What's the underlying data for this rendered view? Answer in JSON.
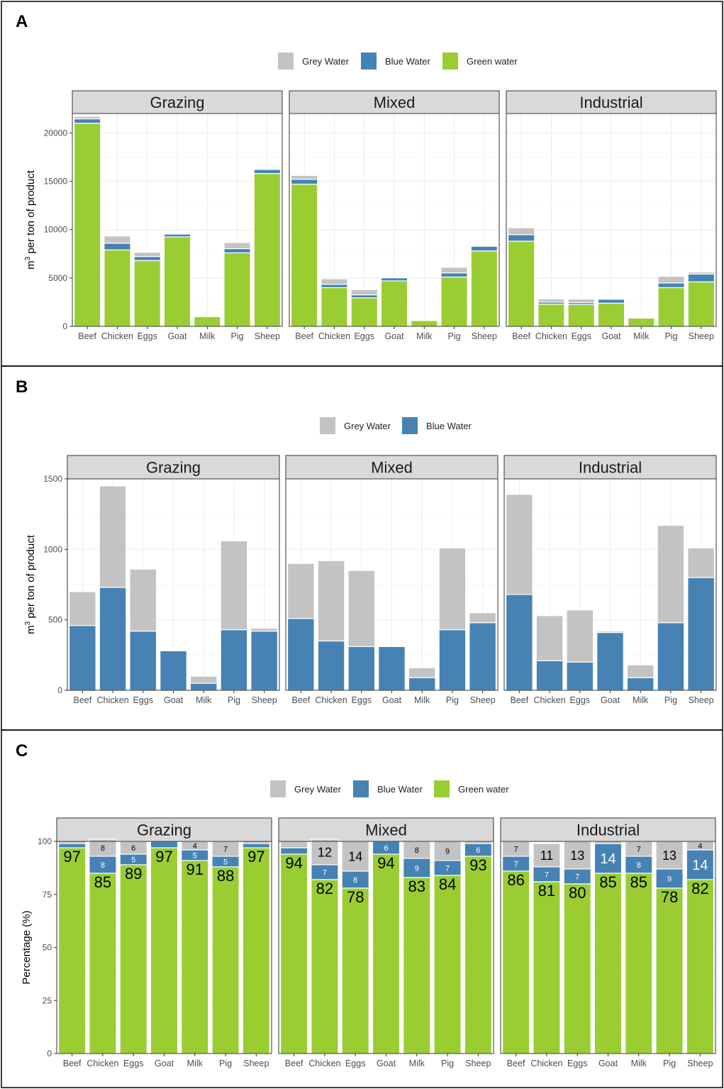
{
  "colors": {
    "grey": "#c3c3c3",
    "blue": "#4682b4",
    "green": "#9acd32",
    "strip": "#d9d9d9",
    "grid": "#ebebeb"
  },
  "categories": [
    "Beef",
    "Chicken",
    "Eggs",
    "Goat",
    "Milk",
    "Pig",
    "Sheep"
  ],
  "facets": [
    "Grazing",
    "Mixed",
    "Industrial"
  ],
  "legend": {
    "grey": "Grey Water",
    "blue": "Blue Water",
    "green": "Green water"
  },
  "panels": [
    {
      "label": "A"
    },
    {
      "label": "B"
    },
    {
      "label": "C"
    }
  ],
  "chart_data": [
    {
      "panel": "A",
      "type": "bar",
      "stacked": true,
      "ylabel": "m3 per ton of product",
      "ylim": [
        0,
        22000
      ],
      "yticks": [
        0,
        5000,
        10000,
        15000,
        20000
      ],
      "legend": [
        "Grey Water",
        "Blue Water",
        "Green water"
      ],
      "legend_position": "top",
      "facets": [
        {
          "name": "Grazing",
          "series": [
            {
              "name": "Green water",
              "values": [
                21000,
                7900,
                6800,
                9250,
                1000,
                7600,
                15800
              ]
            },
            {
              "name": "Blue Water",
              "values": [
                450,
                700,
                420,
                280,
                50,
                430,
                420
              ]
            },
            {
              "name": "Grey Water",
              "values": [
                250,
                740,
                440,
                0,
                50,
                630,
                20
              ]
            }
          ]
        },
        {
          "name": "Mixed",
          "series": [
            {
              "name": "Green water",
              "values": [
                14700,
                4000,
                2950,
                4700,
                600,
                5100,
                7800
              ]
            },
            {
              "name": "Blue Water",
              "values": [
                510,
                350,
                310,
                310,
                90,
                430,
                480
              ]
            },
            {
              "name": "Grey Water",
              "values": [
                390,
                560,
                540,
                0,
                70,
                580,
                60
              ]
            }
          ]
        },
        {
          "name": "Industrial",
          "series": [
            {
              "name": "Green water",
              "values": [
                8800,
                2300,
                2250,
                2400,
                850,
                4000,
                4600
              ]
            },
            {
              "name": "Blue Water",
              "values": [
                680,
                210,
                200,
                410,
                90,
                480,
                800
              ]
            },
            {
              "name": "Grey Water",
              "values": [
                710,
                320,
                370,
                10,
                90,
                690,
                210
              ]
            }
          ]
        }
      ]
    },
    {
      "panel": "B",
      "type": "bar",
      "stacked": true,
      "ylabel": "m3 per ton of product",
      "ylim": [
        0,
        1500
      ],
      "yticks": [
        0,
        500,
        1000,
        1500
      ],
      "legend": [
        "Grey Water",
        "Blue Water"
      ],
      "legend_position": "top",
      "facets": [
        {
          "name": "Grazing",
          "series": [
            {
              "name": "Blue Water",
              "values": [
                460,
                730,
                420,
                280,
                50,
                430,
                420
              ]
            },
            {
              "name": "Grey Water",
              "values": [
                240,
                720,
                440,
                0,
                50,
                630,
                20
              ]
            }
          ]
        },
        {
          "name": "Mixed",
          "series": [
            {
              "name": "Blue Water",
              "values": [
                510,
                350,
                310,
                310,
                90,
                430,
                480
              ]
            },
            {
              "name": "Grey Water",
              "values": [
                390,
                570,
                540,
                0,
                70,
                580,
                70
              ]
            }
          ]
        },
        {
          "name": "Industrial",
          "series": [
            {
              "name": "Blue Water",
              "values": [
                680,
                210,
                200,
                410,
                90,
                480,
                800
              ]
            },
            {
              "name": "Grey Water",
              "values": [
                710,
                320,
                370,
                10,
                90,
                690,
                210
              ]
            }
          ]
        }
      ]
    },
    {
      "panel": "C",
      "type": "bar",
      "stacked": true,
      "ylabel": "Percentage (%)",
      "ylim": [
        0,
        100
      ],
      "yticks": [
        0,
        25,
        50,
        75,
        100
      ],
      "legend": [
        "Grey Water",
        "Blue Water",
        "Green water"
      ],
      "legend_position": "top",
      "facets": [
        {
          "name": "Grazing",
          "series": [
            {
              "name": "Green water",
              "values": [
                97,
                85,
                89,
                97,
                91,
                88,
                97
              ]
            },
            {
              "name": "Blue Water",
              "values": [
                2,
                8,
                5,
                3,
                5,
                5,
                2
              ]
            },
            {
              "name": "Grey Water",
              "values": [
                1,
                8,
                6,
                0,
                4,
                7,
                1
              ]
            }
          ]
        },
        {
          "name": "Mixed",
          "series": [
            {
              "name": "Green water",
              "values": [
                94,
                82,
                78,
                94,
                83,
                84,
                93
              ]
            },
            {
              "name": "Blue Water",
              "values": [
                3,
                7,
                8,
                6,
                9,
                7,
                6
              ]
            },
            {
              "name": "Grey Water",
              "values": [
                3,
                12,
                14,
                0,
                8,
                9,
                1
              ]
            }
          ]
        },
        {
          "name": "Industrial",
          "series": [
            {
              "name": "Green water",
              "values": [
                86,
                81,
                80,
                85,
                85,
                78,
                82
              ]
            },
            {
              "name": "Blue Water",
              "values": [
                7,
                7,
                7,
                14,
                8,
                9,
                14
              ]
            },
            {
              "name": "Grey Water",
              "values": [
                7,
                11,
                13,
                1,
                7,
                13,
                4
              ]
            }
          ]
        }
      ],
      "labels": {
        "Grazing": {
          "green": [
            "97",
            "85",
            "89",
            "97",
            "91",
            "88",
            "97"
          ],
          "blue": [
            "",
            "8",
            "5",
            "",
            "5",
            "5",
            ""
          ],
          "grey": [
            "",
            "8",
            "6",
            "",
            "4",
            "7",
            ""
          ]
        },
        "Mixed": {
          "green": [
            "94",
            "82",
            "78",
            "94",
            "83",
            "84",
            "93"
          ],
          "blue": [
            "",
            "7",
            "8",
            "6",
            "9",
            "7",
            "6"
          ],
          "grey": [
            "",
            "12",
            "14",
            "",
            "8",
            "9",
            ""
          ]
        },
        "Industrial": {
          "green": [
            "86",
            "81",
            "80",
            "85",
            "85",
            "78",
            "82"
          ],
          "blue": [
            "7",
            "7",
            "7",
            "14",
            "8",
            "9",
            "14"
          ],
          "grey": [
            "7",
            "11",
            "13",
            "",
            "7",
            "13",
            "4"
          ]
        }
      }
    }
  ]
}
